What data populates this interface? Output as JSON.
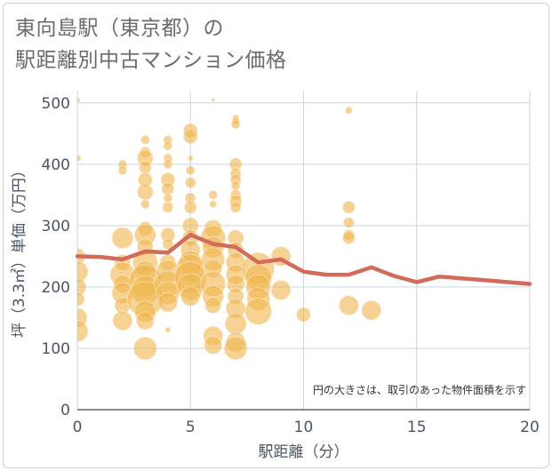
{
  "title": {
    "line1": "東向島駅（東京都）の",
    "line2": "駅距離別中古マンション価格"
  },
  "colors": {
    "bubble": "#F0B54C",
    "line": "#D26B5A",
    "grid": "#c9d7e2"
  },
  "chart_data": {
    "type": "scatter",
    "xlabel": "駅距離（分）",
    "ylabel": "坪（3.3㎡）単価（万円）",
    "xlim": [
      0,
      20
    ],
    "ylim": [
      0,
      520
    ],
    "xticks": [
      0,
      5,
      10,
      15,
      20
    ],
    "yticks": [
      0,
      100,
      200,
      300,
      400,
      500
    ],
    "note": "円の大きさは、取引のあった物件面積を示す",
    "grid": true,
    "series": [
      {
        "type": "scatter",
        "points": [
          [
            0,
            505,
            3
          ],
          [
            0,
            410,
            4
          ],
          [
            0,
            250,
            9
          ],
          [
            0,
            225,
            12
          ],
          [
            0,
            200,
            10
          ],
          [
            0,
            180,
            8
          ],
          [
            0,
            150,
            11
          ],
          [
            0,
            128,
            12
          ],
          [
            2,
            400,
            5
          ],
          [
            2,
            390,
            5
          ],
          [
            2,
            280,
            12
          ],
          [
            2,
            240,
            9
          ],
          [
            2,
            220,
            14
          ],
          [
            2,
            205,
            10
          ],
          [
            2,
            190,
            12
          ],
          [
            2,
            170,
            9
          ],
          [
            2,
            145,
            11
          ],
          [
            3,
            440,
            5
          ],
          [
            3,
            420,
            6
          ],
          [
            3,
            410,
            9
          ],
          [
            3,
            395,
            7
          ],
          [
            3,
            375,
            8
          ],
          [
            3,
            355,
            9
          ],
          [
            3,
            335,
            5
          ],
          [
            3,
            295,
            8
          ],
          [
            3,
            285,
            12
          ],
          [
            3,
            265,
            9
          ],
          [
            3,
            240,
            14
          ],
          [
            3,
            225,
            12
          ],
          [
            3,
            210,
            18
          ],
          [
            3,
            195,
            16
          ],
          [
            3,
            180,
            20
          ],
          [
            3,
            160,
            12
          ],
          [
            3,
            145,
            10
          ],
          [
            3,
            100,
            13
          ],
          [
            4,
            440,
            5
          ],
          [
            4,
            430,
            5
          ],
          [
            4,
            410,
            5
          ],
          [
            4,
            400,
            5
          ],
          [
            4,
            375,
            8
          ],
          [
            4,
            360,
            7
          ],
          [
            4,
            345,
            5
          ],
          [
            4,
            330,
            6
          ],
          [
            4,
            285,
            8
          ],
          [
            4,
            270,
            6
          ],
          [
            4,
            240,
            9
          ],
          [
            4,
            225,
            13
          ],
          [
            4,
            205,
            15
          ],
          [
            4,
            190,
            13
          ],
          [
            4,
            175,
            11
          ],
          [
            4,
            130,
            3
          ],
          [
            5,
            455,
            8
          ],
          [
            5,
            445,
            8
          ],
          [
            5,
            410,
            3
          ],
          [
            5,
            390,
            5
          ],
          [
            5,
            370,
            6
          ],
          [
            5,
            345,
            6
          ],
          [
            5,
            330,
            7
          ],
          [
            5,
            300,
            9
          ],
          [
            5,
            280,
            9
          ],
          [
            5,
            260,
            11
          ],
          [
            5,
            240,
            13
          ],
          [
            5,
            230,
            16
          ],
          [
            5,
            215,
            18
          ],
          [
            5,
            200,
            15
          ],
          [
            5,
            185,
            11
          ],
          [
            6,
            505,
            2
          ],
          [
            6,
            350,
            5
          ],
          [
            6,
            335,
            4
          ],
          [
            6,
            295,
            10
          ],
          [
            6,
            280,
            14
          ],
          [
            6,
            265,
            12
          ],
          [
            6,
            245,
            13
          ],
          [
            6,
            230,
            10
          ],
          [
            6,
            205,
            14
          ],
          [
            6,
            185,
            12
          ],
          [
            6,
            170,
            9
          ],
          [
            6,
            120,
            11
          ],
          [
            6,
            105,
            10
          ],
          [
            7,
            475,
            4
          ],
          [
            7,
            470,
            4
          ],
          [
            7,
            465,
            5
          ],
          [
            7,
            400,
            7
          ],
          [
            7,
            385,
            6
          ],
          [
            7,
            375,
            6
          ],
          [
            7,
            365,
            5
          ],
          [
            7,
            350,
            6
          ],
          [
            7,
            340,
            7
          ],
          [
            7,
            330,
            6
          ],
          [
            7,
            280,
            9
          ],
          [
            7,
            260,
            9
          ],
          [
            7,
            240,
            11
          ],
          [
            7,
            220,
            11
          ],
          [
            7,
            205,
            10
          ],
          [
            7,
            185,
            9
          ],
          [
            7,
            165,
            11
          ],
          [
            7,
            140,
            12
          ],
          [
            7,
            110,
            11
          ],
          [
            7,
            100,
            13
          ],
          [
            8,
            230,
            18
          ],
          [
            8,
            215,
            15
          ],
          [
            8,
            200,
            14
          ],
          [
            8,
            180,
            13
          ],
          [
            8,
            160,
            15
          ],
          [
            9,
            250,
            11
          ],
          [
            9,
            195,
            11
          ],
          [
            10,
            155,
            8
          ],
          [
            12,
            488,
            4
          ],
          [
            12,
            330,
            7
          ],
          [
            12,
            305,
            6
          ],
          [
            12,
            285,
            6
          ],
          [
            12,
            280,
            7
          ],
          [
            12,
            170,
            11
          ],
          [
            13,
            162,
            11
          ]
        ]
      },
      {
        "type": "line",
        "x": [
          0,
          1,
          2,
          3,
          4,
          5,
          6,
          7,
          8,
          9,
          10,
          11,
          12,
          13,
          14,
          15,
          16,
          17,
          18,
          19,
          20
        ],
        "values": [
          250,
          249,
          245,
          258,
          256,
          285,
          270,
          265,
          240,
          245,
          225,
          220,
          220,
          232,
          218,
          208,
          217,
          214,
          211,
          208,
          205
        ]
      }
    ]
  }
}
